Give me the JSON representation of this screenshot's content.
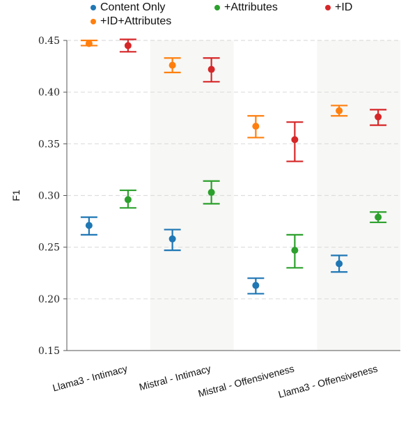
{
  "chart_data": {
    "type": "scatter",
    "ylabel": "F1",
    "ylim": [
      0.15,
      0.45
    ],
    "yticks": [
      "0.15",
      "0.20",
      "0.25",
      "0.30",
      "0.35",
      "0.40",
      "0.45"
    ],
    "categories": [
      "Llama3 - Intimacy",
      "Mistral - Intimacy",
      "Mistral - Offensiveness",
      "Llama3 - Offensiveness"
    ],
    "grid": true,
    "legend_position": "top",
    "series": [
      {
        "name": "Content Only",
        "color": "#1f77b4",
        "values": [
          0.271,
          0.258,
          0.213,
          0.234
        ],
        "lower": [
          0.262,
          0.247,
          0.205,
          0.226
        ],
        "upper": [
          0.279,
          0.267,
          0.22,
          0.242
        ]
      },
      {
        "name": "+Attributes",
        "color": "#2ca02c",
        "values": [
          0.296,
          0.303,
          0.247,
          0.279
        ],
        "lower": [
          0.288,
          0.292,
          0.23,
          0.274
        ],
        "upper": [
          0.305,
          0.314,
          0.262,
          0.284
        ]
      },
      {
        "name": "+ID",
        "color": "#d62728",
        "values": [
          0.445,
          0.422,
          0.354,
          0.376
        ],
        "lower": [
          0.439,
          0.41,
          0.333,
          0.368
        ],
        "upper": [
          0.451,
          0.433,
          0.371,
          0.383
        ]
      },
      {
        "name": "+ID+Attributes",
        "color": "#ff7f0e",
        "values": [
          0.447,
          0.426,
          0.367,
          0.382
        ],
        "lower": [
          0.445,
          0.419,
          0.356,
          0.377
        ],
        "upper": [
          0.45,
          0.433,
          0.377,
          0.387
        ]
      }
    ]
  }
}
